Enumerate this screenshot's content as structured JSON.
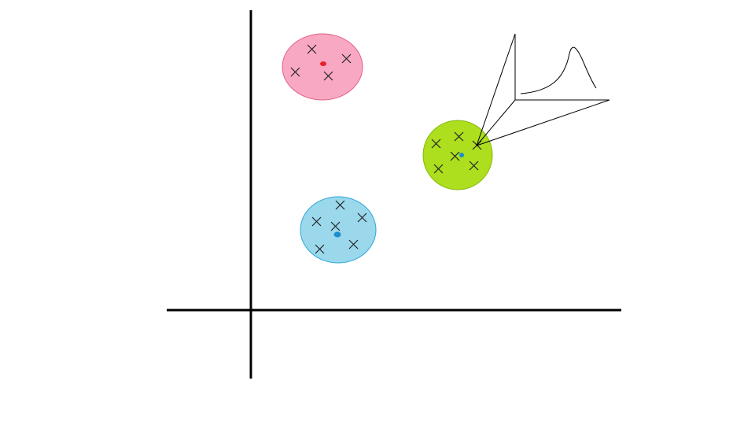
{
  "diagram": {
    "axes_color": "#000000",
    "cross_marker_color": "#222222",
    "clusters": [
      {
        "name": "pink-cluster",
        "fill": "#f9a8c4",
        "stroke": "#e0607e",
        "centroid_color": "#e8202a"
      },
      {
        "name": "green-cluster",
        "fill": "#addf1f",
        "stroke": "#86b80c",
        "centroid_color": "#1a8fcf"
      },
      {
        "name": "blue-cluster",
        "fill": "#9bd8ec",
        "stroke": "#2aa6d6",
        "centroid_color": "#1a8fcf"
      }
    ],
    "inset_distribution": {
      "line_color": "#000000"
    }
  }
}
